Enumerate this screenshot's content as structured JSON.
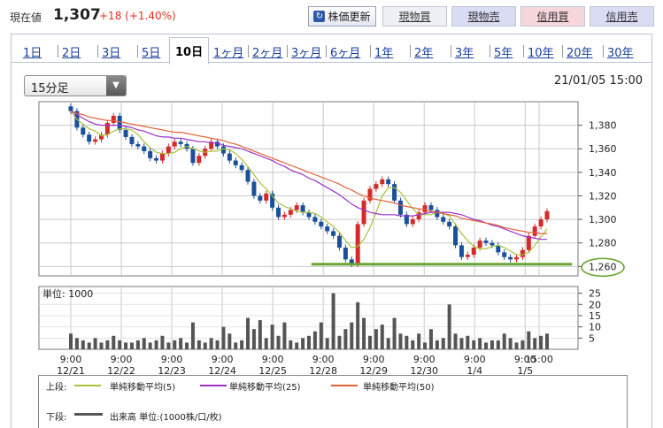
{
  "header": {
    "price_label": "現在値",
    "price_value": "1,307",
    "price_change": "+18 (+1.40%)",
    "refresh_label": "株価更新",
    "buttons": [
      "現物買",
      "現物売",
      "信用買",
      "信用売"
    ]
  },
  "tabs": [
    "1日",
    "2日",
    "3日",
    "5日",
    "10日",
    "1ヶ月",
    "2ヶ月",
    "3ヶ月",
    "6ヶ月",
    "1年",
    "2年",
    "3年",
    "5年",
    "10年",
    "20年",
    "30年"
  ],
  "active_tab": "10日",
  "interval_select": {
    "value": "15分足"
  },
  "datetime": "21/01/05 15:00",
  "colors": {
    "up_candle": "#d42a2a",
    "down_candle": "#1b4f9c",
    "ma5": "#a8c23a",
    "ma25": "#9b33c9",
    "ma50": "#e0643a",
    "volume": "#555555",
    "support_line": "#6aa632",
    "tab_link": "#1a3e9a",
    "price_change": "#e0341c"
  },
  "chart_data": [
    {
      "type": "candlestick",
      "yticks": [
        1260,
        1280,
        1300,
        1320,
        1340,
        1360,
        1380
      ],
      "ylim": [
        1252,
        1400
      ],
      "ylabels": [
        "1,260",
        "1,280",
        "1,300",
        "1,320",
        "1,340",
        "1,360",
        "1,380"
      ],
      "highlighted_tick": "1,260",
      "support_level": 1262,
      "x_session_labels": [
        {
          "time": "9:00",
          "date": "12/21"
        },
        {
          "time": "9:00",
          "date": "12/22"
        },
        {
          "time": "9:00",
          "date": "12/23"
        },
        {
          "time": "9:00",
          "date": "12/24"
        },
        {
          "time": "9:00",
          "date": "12/25"
        },
        {
          "time": "9:00",
          "date": "12/28"
        },
        {
          "time": "9:00",
          "date": "12/29"
        },
        {
          "time": "9:00",
          "date": "12/30"
        },
        {
          "time": "9:00",
          "date": "1/4"
        },
        {
          "time": "9:00",
          "date": "1/5"
        },
        {
          "time": "15:00",
          "date": ""
        }
      ],
      "close": [
        1392,
        1378,
        1372,
        1366,
        1368,
        1372,
        1382,
        1388,
        1376,
        1370,
        1364,
        1362,
        1358,
        1352,
        1350,
        1356,
        1362,
        1366,
        1364,
        1360,
        1348,
        1354,
        1360,
        1366,
        1362,
        1356,
        1350,
        1346,
        1342,
        1332,
        1320,
        1316,
        1322,
        1310,
        1302,
        1304,
        1308,
        1312,
        1306,
        1302,
        1298,
        1294,
        1290,
        1286,
        1276,
        1266,
        1262,
        1296,
        1316,
        1326,
        1330,
        1334,
        1330,
        1316,
        1304,
        1296,
        1300,
        1306,
        1312,
        1308,
        1302,
        1298,
        1294,
        1278,
        1268,
        1270,
        1276,
        1282,
        1280,
        1278,
        1272,
        1268,
        1266,
        1268,
        1274,
        1286,
        1294,
        1300,
        1307
      ],
      "series": [
        {
          "name": "単純移動平均(5)",
          "values": [
            1392,
            1385,
            1381,
            1377,
            1375,
            1371,
            1372,
            1375,
            1377,
            1377,
            1376,
            1372,
            1366,
            1361,
            1357,
            1356,
            1356,
            1357,
            1360,
            1362,
            1360,
            1358,
            1357,
            1358,
            1358,
            1360,
            1359,
            1356,
            1351,
            1345,
            1338,
            1331,
            1326,
            1320,
            1314,
            1311,
            1309,
            1307,
            1306,
            1306,
            1305,
            1302,
            1298,
            1294,
            1289,
            1282,
            1276,
            1277,
            1283,
            1293,
            1306,
            1320,
            1327,
            1327,
            1323,
            1316,
            1309,
            1304,
            1304,
            1304,
            1306,
            1305,
            1303,
            1296,
            1288,
            1282,
            1277,
            1275,
            1275,
            1277,
            1278,
            1276,
            1273,
            1270,
            1270,
            1272,
            1278,
            1285,
            1292
          ]
        },
        {
          "name": "単純移動平均(25)",
          "values": [
            1392,
            1389,
            1386,
            1383,
            1381,
            1380,
            1380,
            1380,
            1380,
            1379,
            1378,
            1376,
            1375,
            1373,
            1371,
            1370,
            1370,
            1369,
            1369,
            1368,
            1367,
            1366,
            1366,
            1365,
            1365,
            1363,
            1362,
            1361,
            1360,
            1358,
            1356,
            1354,
            1352,
            1350,
            1347,
            1345,
            1342,
            1340,
            1338,
            1335,
            1333,
            1330,
            1327,
            1324,
            1321,
            1317,
            1313,
            1310,
            1308,
            1306,
            1305,
            1304,
            1304,
            1304,
            1303,
            1303,
            1303,
            1304,
            1305,
            1306,
            1306,
            1306,
            1306,
            1305,
            1304,
            1302,
            1300,
            1299,
            1297,
            1295,
            1294,
            1292,
            1290,
            1288,
            1286,
            1285,
            1284,
            1283,
            1283
          ]
        },
        {
          "name": "単純移動平均(50)",
          "values": [
            1392,
            1390,
            1389,
            1387,
            1386,
            1385,
            1384,
            1384,
            1383,
            1382,
            1381,
            1380,
            1379,
            1378,
            1377,
            1376,
            1375,
            1374,
            1374,
            1373,
            1372,
            1371,
            1370,
            1369,
            1368,
            1367,
            1365,
            1364,
            1362,
            1360,
            1358,
            1356,
            1354,
            1352,
            1350,
            1348,
            1346,
            1344,
            1342,
            1340,
            1338,
            1336,
            1334,
            1332,
            1330,
            1327,
            1325,
            1322,
            1320,
            1318,
            1317,
            1316,
            1315,
            1314,
            1312,
            1311,
            1310,
            1309,
            1308,
            1307,
            1306,
            1305,
            1304,
            1303,
            1301,
            1300,
            1299,
            1298,
            1297,
            1296,
            1295,
            1293,
            1292,
            1291,
            1290,
            1289,
            1289,
            1288,
            1288
          ]
        }
      ]
    },
    {
      "type": "bar",
      "name": "出来高",
      "unit_label": "単位: 1000",
      "yticks": [
        5,
        10,
        15,
        20,
        25
      ],
      "ylim": [
        0,
        28
      ],
      "values": [
        7,
        5,
        4,
        3,
        5,
        3,
        4,
        6,
        4,
        3,
        3,
        4,
        5,
        3,
        4,
        6,
        3,
        4,
        5,
        3,
        12,
        4,
        3,
        5,
        4,
        10,
        7,
        3,
        4,
        14,
        9,
        13,
        5,
        11,
        6,
        12,
        4,
        3,
        5,
        6,
        8,
        12,
        5,
        25,
        6,
        9,
        12,
        21,
        14,
        6,
        9,
        11,
        5,
        14,
        7,
        6,
        4,
        7,
        3,
        9,
        4,
        5,
        20,
        7,
        5,
        6,
        4,
        5,
        3,
        4,
        4,
        7,
        5,
        3,
        4,
        8,
        5,
        6,
        7
      ]
    }
  ],
  "legend": {
    "upper_label": "上段:",
    "ma5": "単純移動平均(5)",
    "ma25": "単純移動平均(25)",
    "ma50": "単純移動平均(50)",
    "lower_label": "下段:",
    "volume": "出来高 単位:(1000株/口/枚)"
  }
}
